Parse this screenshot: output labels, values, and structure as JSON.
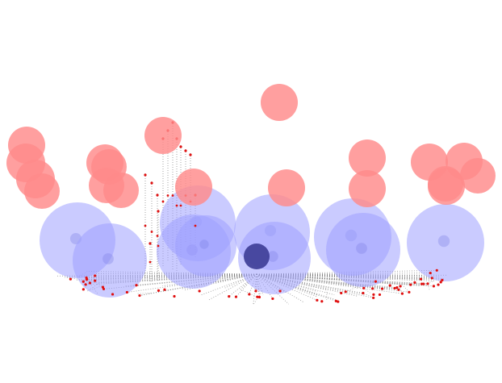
{
  "scene": {
    "background": "#ffffff",
    "colors": {
      "red_sphere": "#ff8a8a",
      "blue_sphere": "#9fa0ff",
      "dark_sphere": "#3c3c96",
      "line": "#7a7a7a",
      "dot": "#e01010"
    }
  }
}
